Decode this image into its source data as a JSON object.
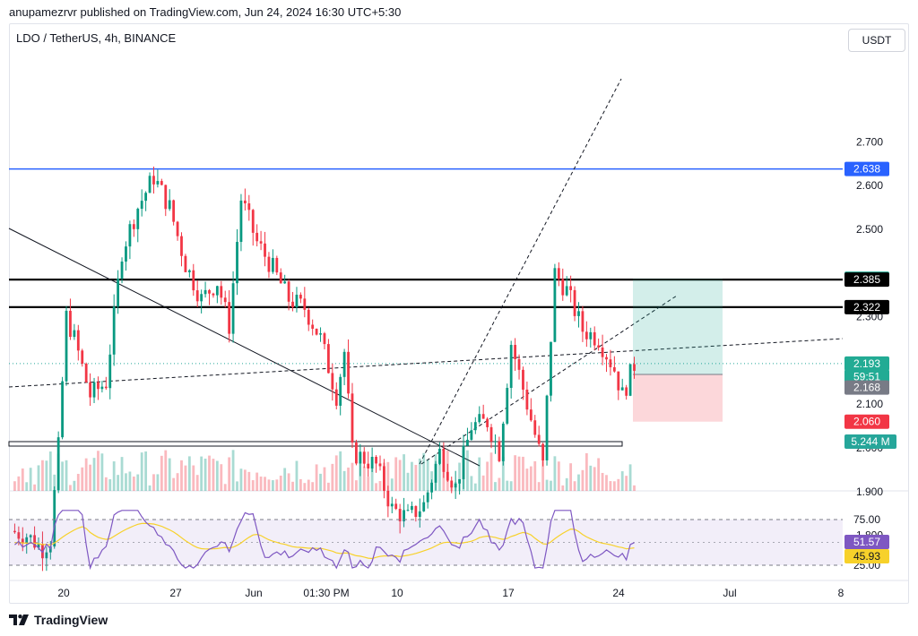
{
  "header": {
    "published_line": "anupamezrvr published on TradingView.com, Jun 24, 2024 16:30 UTC+5:30",
    "symbol_line": "LDO / TetherUS, 4h, BINANCE",
    "currency_button": "USDT"
  },
  "footer": {
    "brand": "TradingView"
  },
  "chart_data": {
    "type": "candlestick",
    "price_axis": {
      "ticks": [
        "2.700",
        "2.600",
        "2.500",
        "2.300",
        "2.100",
        "2.000",
        "1.900",
        "1.800"
      ],
      "ylim": [
        1.76,
        2.72
      ]
    },
    "time_axis": {
      "ticks": [
        "20",
        "27",
        "Jun",
        "01:30 PM",
        "10",
        "17",
        "24",
        "Jul",
        "8"
      ]
    },
    "price_path": [
      [
        0,
        1.81
      ],
      [
        4,
        1.8
      ],
      [
        8,
        1.77
      ],
      [
        10,
        1.79
      ],
      [
        12,
        2.0
      ],
      [
        14,
        2.3
      ],
      [
        16,
        2.25
      ],
      [
        20,
        2.12
      ],
      [
        24,
        2.15
      ],
      [
        28,
        2.45
      ],
      [
        32,
        2.55
      ],
      [
        36,
        2.62
      ],
      [
        40,
        2.55
      ],
      [
        44,
        2.42
      ],
      [
        48,
        2.34
      ],
      [
        52,
        2.38
      ],
      [
        55,
        2.28
      ],
      [
        58,
        2.57
      ],
      [
        62,
        2.47
      ],
      [
        66,
        2.41
      ],
      [
        70,
        2.34
      ],
      [
        74,
        2.32
      ],
      [
        78,
        2.25
      ],
      [
        82,
        2.12
      ],
      [
        84,
        2.22
      ],
      [
        86,
        1.99
      ],
      [
        88,
        1.98
      ],
      [
        92,
        1.96
      ],
      [
        96,
        1.86
      ],
      [
        100,
        1.84
      ],
      [
        104,
        1.87
      ],
      [
        108,
        1.99
      ],
      [
        112,
        1.91
      ],
      [
        116,
        2.05
      ],
      [
        120,
        2.06
      ],
      [
        123,
        1.99
      ],
      [
        126,
        2.24
      ],
      [
        130,
        2.1
      ],
      [
        134,
        1.96
      ],
      [
        137,
        2.4
      ],
      [
        140,
        2.36
      ],
      [
        144,
        2.27
      ],
      [
        148,
        2.25
      ],
      [
        152,
        2.18
      ],
      [
        154,
        2.12
      ],
      [
        157,
        2.19
      ]
    ],
    "horizontal_levels": [
      {
        "price": 2.638,
        "color": "#2962ff"
      },
      {
        "price": 2.385,
        "color": "#000000"
      },
      {
        "price": 2.322,
        "color": "#000000"
      }
    ],
    "position_tool": {
      "target": 2.387,
      "entry": 2.168,
      "stop": 2.06
    },
    "price_tags": [
      {
        "label": "2.638",
        "price": 2.638,
        "color": "#2962ff"
      },
      {
        "label": "2.387",
        "price": 2.387,
        "color": "#22ab94"
      },
      {
        "label": "2.385",
        "price": 2.385,
        "color": "#000000"
      },
      {
        "label": "2.322",
        "price": 2.322,
        "color": "#000000"
      },
      {
        "label": "2.193",
        "price": 2.193,
        "color": "#22ab94"
      },
      {
        "label": "59:51",
        "price": 2.163,
        "color": "#22ab94"
      },
      {
        "label": "2.168",
        "price": 2.138,
        "color": "#787b86"
      },
      {
        "label": "2.060",
        "price": 2.06,
        "color": "#f23645"
      }
    ],
    "volume": {
      "label": "5.244 M",
      "color": "#26a69a"
    },
    "rsi": {
      "ticks": [
        "75.00",
        "25.00"
      ],
      "rsi_value": "51.57",
      "ma_value": "45.93",
      "rsi_color": "#7e57c2",
      "ma_color": "#f7d12a"
    },
    "colors": {
      "up": "#089981",
      "down": "#f23645"
    }
  }
}
